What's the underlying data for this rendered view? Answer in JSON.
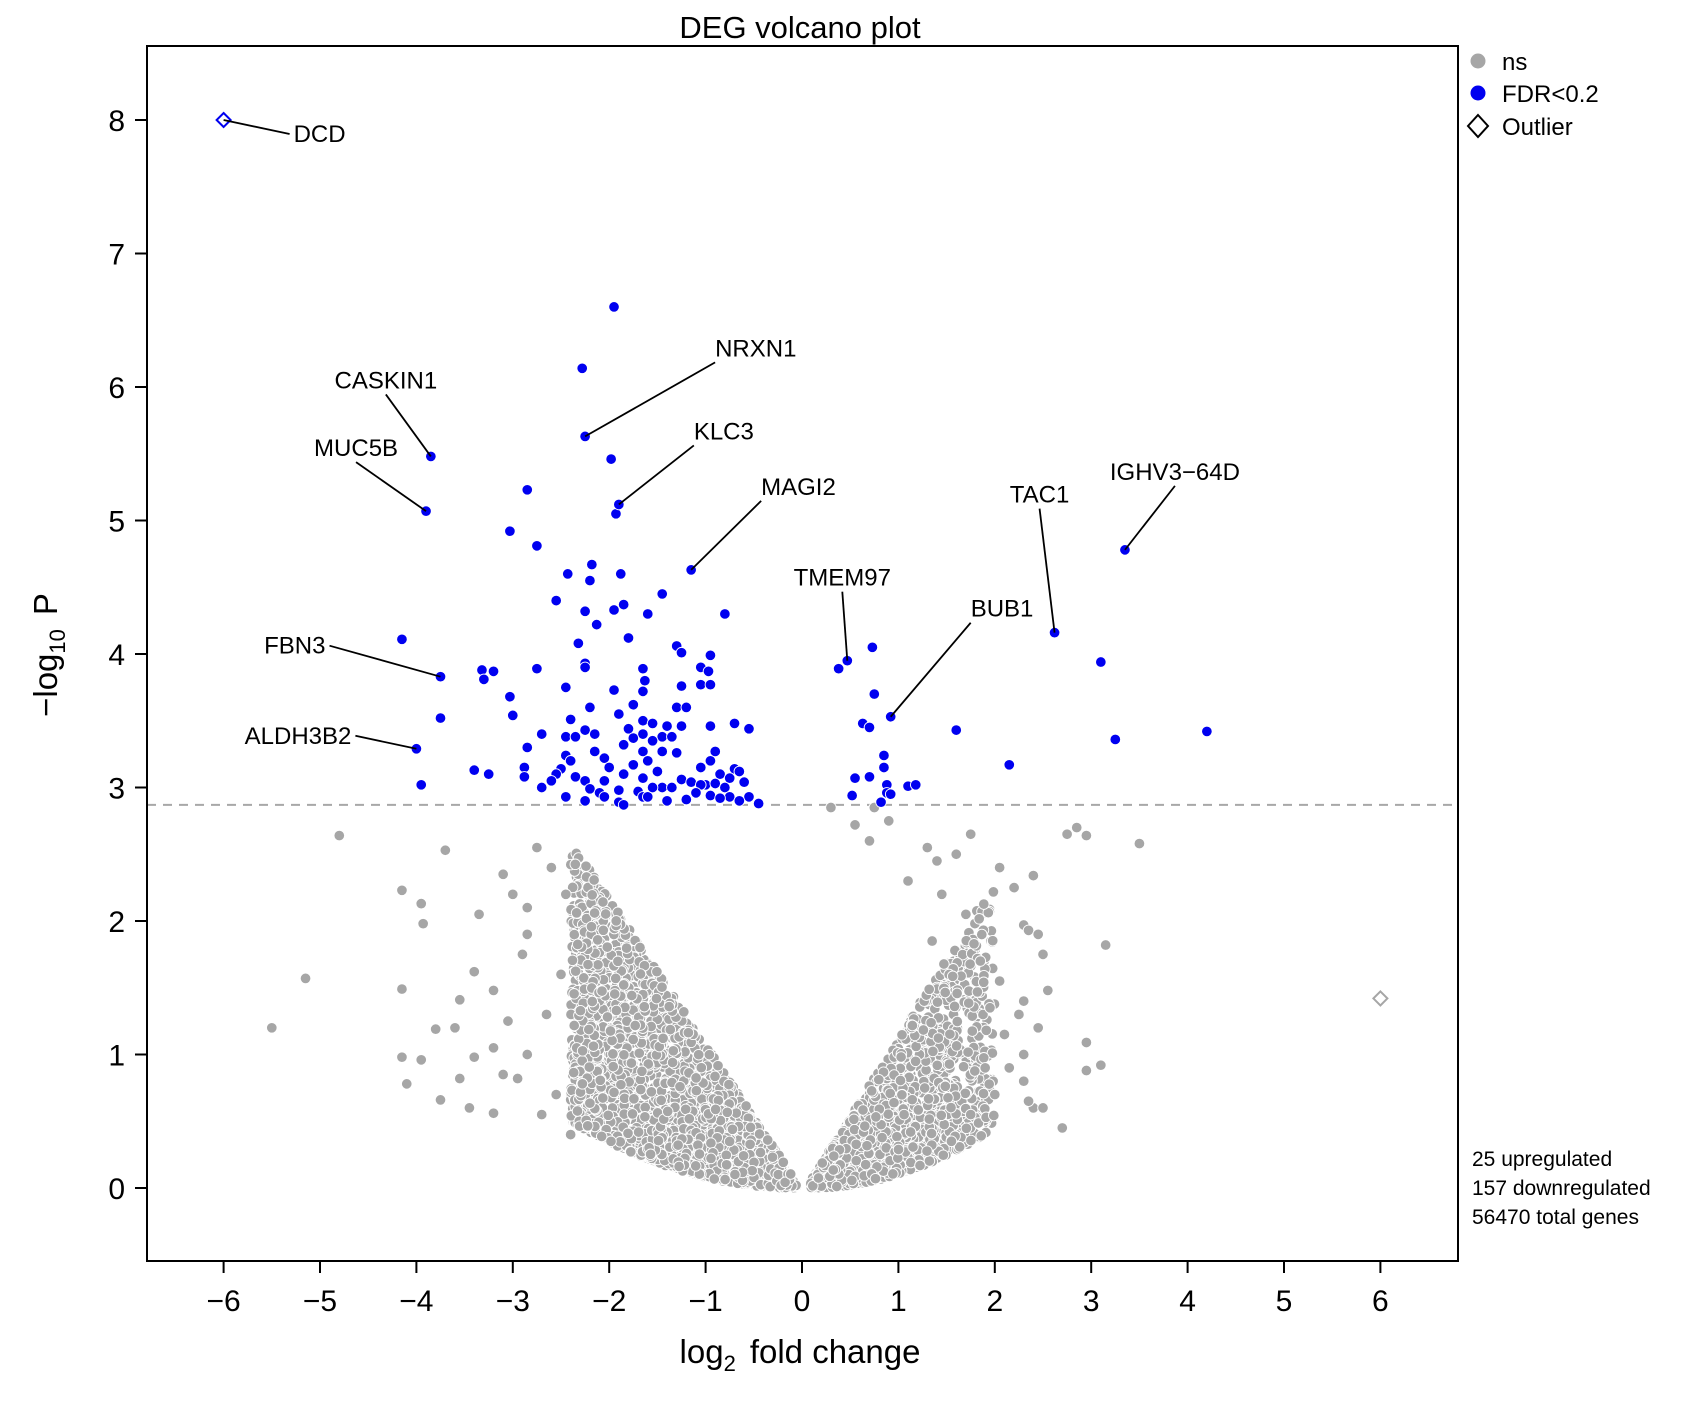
{
  "chart_data": {
    "type": "scatter",
    "title": "DEG volcano plot",
    "xlabel_main": "log",
    "xlabel_sub": "2",
    "xlabel_rest": "fold change",
    "ylabel_pre": "−log",
    "ylabel_sub": "10",
    "ylabel_rest": "P",
    "xlim": [
      -6.8,
      6.8
    ],
    "ylim": [
      -0.55,
      8.55
    ],
    "x_ticks": [
      {
        "value": -6,
        "label": "−6"
      },
      {
        "value": -5,
        "label": "−5"
      },
      {
        "value": -4,
        "label": "−4"
      },
      {
        "value": -3,
        "label": "−3"
      },
      {
        "value": -2,
        "label": "−2"
      },
      {
        "value": -1,
        "label": "−1"
      },
      {
        "value": 0,
        "label": "0"
      },
      {
        "value": 1,
        "label": "1"
      },
      {
        "value": 2,
        "label": "2"
      },
      {
        "value": 3,
        "label": "3"
      },
      {
        "value": 4,
        "label": "4"
      },
      {
        "value": 5,
        "label": "5"
      },
      {
        "value": 6,
        "label": "6"
      }
    ],
    "y_ticks": [
      {
        "value": 0,
        "label": "0"
      },
      {
        "value": 1,
        "label": "1"
      },
      {
        "value": 2,
        "label": "2"
      },
      {
        "value": 3,
        "label": "3"
      },
      {
        "value": 4,
        "label": "4"
      },
      {
        "value": 5,
        "label": "5"
      },
      {
        "value": 6,
        "label": "6"
      },
      {
        "value": 7,
        "label": "7"
      },
      {
        "value": 8,
        "label": "8"
      }
    ],
    "threshold_y": 2.87,
    "grid": false,
    "legend_position": "top-right outside",
    "legend": [
      {
        "label": "ns",
        "marker": "circle",
        "color": "#a6a6a6"
      },
      {
        "label": "FDR<0.2",
        "marker": "circle",
        "color": "#0000f0"
      },
      {
        "label": "Outlier",
        "marker": "diamond",
        "color": "#000000"
      }
    ],
    "colors": {
      "ns": "#a6a6a6",
      "significant": "#0000f0",
      "threshold": "#a8a8a8"
    },
    "summary": [
      "25 upregulated",
      "157 downregulated",
      "56470 total genes"
    ],
    "labeled_genes": [
      {
        "gene": "DCD",
        "x": -6.0,
        "y": 8.0,
        "marker": "diamond"
      },
      {
        "gene": "NRXN1",
        "x": -2.25,
        "y": 5.63
      },
      {
        "gene": "CASKIN1",
        "x": -3.85,
        "y": 5.48
      },
      {
        "gene": "MUC5B",
        "x": -3.9,
        "y": 5.07
      },
      {
        "gene": "KLC3",
        "x": -1.9,
        "y": 5.12
      },
      {
        "gene": "MAGI2",
        "x": -1.15,
        "y": 4.63
      },
      {
        "gene": "TMEM97",
        "x": 0.47,
        "y": 3.95
      },
      {
        "gene": "BUB1",
        "x": 0.92,
        "y": 3.53
      },
      {
        "gene": "TAC1",
        "x": 2.62,
        "y": 4.16
      },
      {
        "gene": "IGHV3−64D",
        "x": 3.35,
        "y": 4.78
      },
      {
        "gene": "FBN3",
        "x": -3.75,
        "y": 3.83
      },
      {
        "gene": "ALDH3B2",
        "x": -4.0,
        "y": 3.29
      }
    ],
    "significant_points": [
      [
        -1.95,
        6.6
      ],
      [
        -2.28,
        6.14
      ],
      [
        -1.98,
        5.46
      ],
      [
        -2.85,
        5.23
      ],
      [
        -1.93,
        5.05
      ],
      [
        -3.03,
        4.92
      ],
      [
        -2.75,
        4.81
      ],
      [
        -2.18,
        4.67
      ],
      [
        -2.43,
        4.6
      ],
      [
        -1.88,
        4.6
      ],
      [
        -2.2,
        4.55
      ],
      [
        -1.45,
        4.45
      ],
      [
        -2.55,
        4.4
      ],
      [
        -1.85,
        4.37
      ],
      [
        -2.25,
        4.32
      ],
      [
        -1.95,
        4.33
      ],
      [
        -1.6,
        4.3
      ],
      [
        -0.8,
        4.3
      ],
      [
        -2.13,
        4.22
      ],
      [
        -4.15,
        4.11
      ],
      [
        -1.8,
        4.12
      ],
      [
        -1.3,
        4.06
      ],
      [
        -1.25,
        4.01
      ],
      [
        -2.32,
        4.08
      ],
      [
        -2.25,
        3.93
      ],
      [
        -0.95,
        3.99
      ],
      [
        -2.25,
        3.9
      ],
      [
        -3.32,
        3.88
      ],
      [
        -3.2,
        3.87
      ],
      [
        -2.75,
        3.89
      ],
      [
        -1.65,
        3.89
      ],
      [
        -1.05,
        3.9
      ],
      [
        -3.3,
        3.81
      ],
      [
        -0.97,
        3.87
      ],
      [
        -1.63,
        3.8
      ],
      [
        -2.45,
        3.75
      ],
      [
        -1.25,
        3.76
      ],
      [
        -1.95,
        3.73
      ],
      [
        -1.05,
        3.77
      ],
      [
        -0.95,
        3.77
      ],
      [
        -1.65,
        3.72
      ],
      [
        -3.03,
        3.68
      ],
      [
        -2.2,
        3.6
      ],
      [
        -1.75,
        3.62
      ],
      [
        -1.3,
        3.6
      ],
      [
        -1.2,
        3.6
      ],
      [
        -3.75,
        3.52
      ],
      [
        -3.0,
        3.54
      ],
      [
        -1.9,
        3.55
      ],
      [
        -1.65,
        3.5
      ],
      [
        -2.4,
        3.51
      ],
      [
        -1.55,
        3.48
      ],
      [
        -1.4,
        3.46
      ],
      [
        -1.25,
        3.46
      ],
      [
        -0.95,
        3.46
      ],
      [
        -0.7,
        3.48
      ],
      [
        -0.55,
        3.44
      ],
      [
        -2.25,
        3.43
      ],
      [
        -1.8,
        3.44
      ],
      [
        -2.15,
        3.4
      ],
      [
        -1.65,
        3.4
      ],
      [
        -1.45,
        3.38
      ],
      [
        -1.35,
        3.38
      ],
      [
        -2.7,
        3.4
      ],
      [
        -2.45,
        3.38
      ],
      [
        -2.35,
        3.38
      ],
      [
        -1.75,
        3.37
      ],
      [
        -1.55,
        3.35
      ],
      [
        -1.85,
        3.32
      ],
      [
        -2.85,
        3.3
      ],
      [
        -2.15,
        3.27
      ],
      [
        -1.65,
        3.27
      ],
      [
        -1.45,
        3.27
      ],
      [
        -1.3,
        3.26
      ],
      [
        -2.45,
        3.24
      ],
      [
        -2.4,
        3.2
      ],
      [
        -2.05,
        3.22
      ],
      [
        -1.6,
        3.2
      ],
      [
        -0.95,
        3.2
      ],
      [
        -1.75,
        3.17
      ],
      [
        -2.88,
        3.15
      ],
      [
        -2.5,
        3.14
      ],
      [
        -2.0,
        3.15
      ],
      [
        -1.05,
        3.15
      ],
      [
        -0.7,
        3.14
      ],
      [
        -3.4,
        3.13
      ],
      [
        -3.25,
        3.1
      ],
      [
        -2.55,
        3.1
      ],
      [
        -2.35,
        3.08
      ],
      [
        -1.65,
        3.07
      ],
      [
        -0.65,
        3.12
      ],
      [
        -0.85,
        3.1
      ],
      [
        -2.88,
        3.08
      ],
      [
        -1.25,
        3.06
      ],
      [
        -0.75,
        3.07
      ],
      [
        -2.25,
        3.05
      ],
      [
        -1.15,
        3.04
      ],
      [
        -1.0,
        3.02
      ],
      [
        -0.9,
        3.03
      ],
      [
        -0.6,
        3.04
      ],
      [
        -3.95,
        3.02
      ],
      [
        -2.7,
        3.0
      ],
      [
        -2.2,
        2.99
      ],
      [
        -1.9,
        2.98
      ],
      [
        -1.7,
        2.97
      ],
      [
        -1.45,
        3.0
      ],
      [
        -1.35,
        3.0
      ],
      [
        -1.05,
        3.02
      ],
      [
        -0.8,
        3.0
      ],
      [
        -2.1,
        2.96
      ],
      [
        -2.05,
        2.93
      ],
      [
        -1.65,
        2.93
      ],
      [
        -1.6,
        2.93
      ],
      [
        -1.1,
        2.96
      ],
      [
        -0.95,
        2.94
      ],
      [
        -0.75,
        2.93
      ],
      [
        -0.55,
        2.93
      ],
      [
        -2.45,
        2.93
      ],
      [
        -2.25,
        2.9
      ],
      [
        -1.9,
        2.89
      ],
      [
        -1.2,
        2.91
      ],
      [
        -0.65,
        2.9
      ],
      [
        -0.85,
        2.92
      ],
      [
        -1.85,
        2.87
      ],
      [
        -1.4,
        2.9
      ],
      [
        -0.45,
        2.88
      ],
      [
        -2.6,
        3.05
      ],
      [
        -1.55,
        3.0
      ],
      [
        -1.85,
        3.1
      ],
      [
        -2.05,
        3.05
      ],
      [
        -1.5,
        3.12
      ],
      [
        -0.9,
        3.27
      ],
      [
        0.38,
        3.89
      ],
      [
        0.73,
        4.05
      ],
      [
        0.75,
        3.7
      ],
      [
        0.63,
        3.48
      ],
      [
        0.7,
        3.45
      ],
      [
        0.85,
        3.24
      ],
      [
        0.85,
        3.15
      ],
      [
        0.55,
        3.07
      ],
      [
        0.7,
        3.08
      ],
      [
        0.88,
        3.02
      ],
      [
        0.52,
        2.94
      ],
      [
        0.88,
        2.96
      ],
      [
        0.92,
        2.95
      ],
      [
        1.1,
        3.01
      ],
      [
        1.18,
        3.02
      ],
      [
        0.82,
        2.89
      ],
      [
        1.6,
        3.43
      ],
      [
        2.15,
        3.17
      ],
      [
        3.1,
        3.94
      ],
      [
        3.25,
        3.36
      ],
      [
        4.2,
        3.42
      ]
    ],
    "ns_clouds": [
      {
        "side": "left",
        "x_from": -2.4,
        "x_to": -0.05,
        "y_max_at_inner": 0.04,
        "y_max_at_outer": 2.6,
        "count": 2600
      },
      {
        "side": "right",
        "x_from": 0.08,
        "x_to": 2.0,
        "y_max_at_inner": 0.04,
        "y_max_at_outer": 2.3,
        "count": 1700
      }
    ],
    "ns_points": [
      [
        -4.8,
        2.64
      ],
      [
        -3.7,
        2.53
      ],
      [
        -4.15,
        2.23
      ],
      [
        -3.95,
        2.13
      ],
      [
        -3.93,
        1.98
      ],
      [
        -3.4,
        1.62
      ],
      [
        -3.2,
        1.48
      ],
      [
        -4.15,
        1.49
      ],
      [
        -3.55,
        1.41
      ],
      [
        -3.6,
        1.2
      ],
      [
        -3.8,
        1.19
      ],
      [
        -3.2,
        1.05
      ],
      [
        -3.1,
        0.85
      ],
      [
        -3.4,
        0.98
      ],
      [
        -3.55,
        0.82
      ],
      [
        -3.95,
        0.96
      ],
      [
        -4.15,
        0.98
      ],
      [
        -4.1,
        0.78
      ],
      [
        -3.75,
        0.66
      ],
      [
        -3.45,
        0.6
      ],
      [
        -3.2,
        0.56
      ],
      [
        -5.15,
        1.57
      ],
      [
        -5.5,
        1.2
      ],
      [
        -3.35,
        2.05
      ],
      [
        -3.0,
        2.2
      ],
      [
        -2.9,
        1.75
      ],
      [
        -3.05,
        1.25
      ],
      [
        -2.85,
        1.0
      ],
      [
        -2.7,
        0.55
      ],
      [
        -2.95,
        0.82
      ],
      [
        -2.6,
        2.4
      ],
      [
        -2.75,
        2.55
      ],
      [
        -3.1,
        2.35
      ],
      [
        -2.85,
        1.9
      ],
      [
        -2.65,
        1.3
      ],
      [
        -2.55,
        0.7
      ],
      [
        -2.4,
        0.4
      ],
      [
        -2.85,
        2.1
      ],
      [
        -2.5,
        1.6
      ],
      [
        -2.45,
        2.2
      ],
      [
        2.4,
        2.34
      ],
      [
        2.2,
        2.25
      ],
      [
        2.3,
        1.97
      ],
      [
        2.35,
        1.93
      ],
      [
        2.45,
        1.9
      ],
      [
        2.5,
        1.75
      ],
      [
        2.55,
        1.48
      ],
      [
        2.3,
        1.4
      ],
      [
        2.25,
        1.3
      ],
      [
        2.45,
        1.2
      ],
      [
        2.3,
        1.0
      ],
      [
        2.15,
        0.9
      ],
      [
        2.3,
        0.8
      ],
      [
        2.4,
        0.6
      ],
      [
        2.5,
        0.6
      ],
      [
        2.35,
        0.65
      ],
      [
        2.7,
        0.45
      ],
      [
        2.75,
        2.65
      ],
      [
        2.85,
        2.7
      ],
      [
        2.95,
        2.64
      ],
      [
        3.15,
        1.82
      ],
      [
        2.95,
        1.09
      ],
      [
        3.1,
        0.92
      ],
      [
        2.95,
        0.88
      ],
      [
        3.5,
        2.58
      ],
      [
        1.75,
        2.65
      ],
      [
        1.6,
        2.5
      ],
      [
        1.4,
        2.45
      ],
      [
        1.3,
        2.55
      ],
      [
        1.45,
        2.2
      ],
      [
        1.7,
        2.05
      ],
      [
        1.85,
        1.7
      ],
      [
        2.05,
        1.55
      ],
      [
        1.95,
        1.35
      ],
      [
        2.1,
        1.15
      ],
      [
        1.9,
        0.9
      ],
      [
        2.0,
        0.7
      ],
      [
        1.75,
        0.55
      ],
      [
        1.55,
        0.35
      ],
      [
        2.05,
        2.4
      ],
      [
        0.3,
        2.85
      ],
      [
        0.75,
        2.85
      ],
      [
        0.55,
        2.72
      ],
      [
        0.9,
        2.75
      ],
      [
        0.7,
        2.6
      ],
      [
        1.1,
        2.3
      ],
      [
        1.35,
        1.85
      ]
    ]
  }
}
